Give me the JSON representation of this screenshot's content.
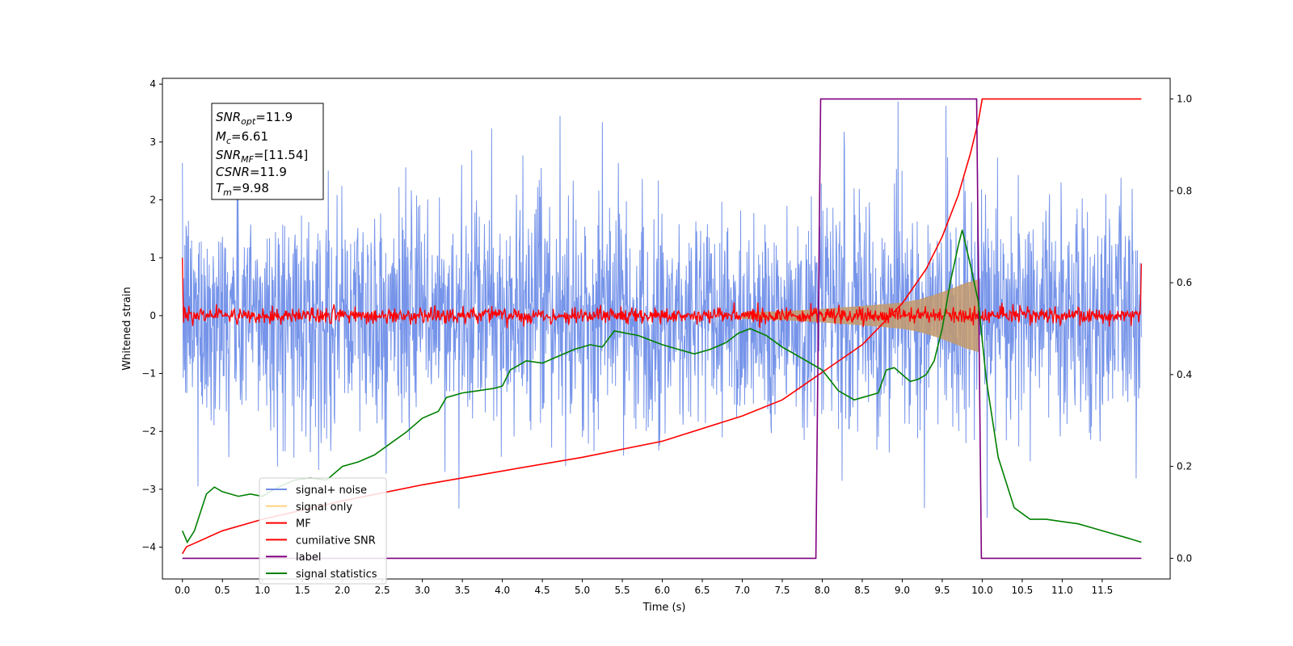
{
  "chart_data": {
    "type": "line",
    "xlabel": "Time (s)",
    "ylabel": "Whitened strain",
    "xlim": [
      -0.25,
      12.35
    ],
    "ylim": [
      -4.55,
      4.1
    ],
    "y2lim": [
      -0.045,
      1.045
    ],
    "x_ticks": [
      0.0,
      0.5,
      1.0,
      1.5,
      2.0,
      2.5,
      3.0,
      3.5,
      4.0,
      4.5,
      5.0,
      5.5,
      6.0,
      6.5,
      7.0,
      7.5,
      8.0,
      8.5,
      9.0,
      9.5,
      10.0,
      10.5,
      11.0,
      11.5
    ],
    "x_tick_labels": [
      "0.0",
      "0.5",
      "1.0",
      "1.5",
      "2.0",
      "2.5",
      "3.0",
      "3.5",
      "4.0",
      "4.5",
      "5.0",
      "5.5",
      "6.0",
      "6.5",
      "7.0",
      "7.5",
      "8.0",
      "8.5",
      "9.0",
      "9.5",
      "10.0",
      "10.5",
      "11.0",
      "11.5"
    ],
    "y_ticks": [
      -4,
      -3,
      -2,
      -1,
      0,
      1,
      2,
      3,
      4
    ],
    "y_tick_labels": [
      "−4",
      "−3",
      "−2",
      "−1",
      "0",
      "1",
      "2",
      "3",
      "4"
    ],
    "y2_ticks": [
      0.0,
      0.2,
      0.4,
      0.6,
      0.8,
      1.0
    ],
    "y2_tick_labels": [
      "0.0",
      "0.2",
      "0.4",
      "0.6",
      "0.8",
      "1.0"
    ],
    "grid": false,
    "legend_position": "lower-left",
    "legend": [
      {
        "label": "signal+ noise",
        "color": "#6f8ee8"
      },
      {
        "label": "signal only",
        "color": "#ffd27f"
      },
      {
        "label": "MF",
        "color": "#ff0000"
      },
      {
        "label": "cumilative SNR",
        "color": "#ff0000"
      },
      {
        "label": "label",
        "color": "#800080"
      },
      {
        "label": "signal statistics",
        "color": "#008000"
      }
    ],
    "annotation": {
      "snr_opt": "11.9",
      "mc": "6.61",
      "snr_mf": "[11.54]",
      "csnr": "11.9",
      "tm": "9.98"
    },
    "series": [
      {
        "name": "signal+ noise",
        "axis": "left",
        "color": "#6f8ee8",
        "x_range": [
          0.0,
          11.99
        ],
        "description_values": {
          "mean": 0.0,
          "typical_peak": 2.0,
          "max": 3.7,
          "min": -3.9
        }
      },
      {
        "name": "signal only",
        "axis": "left",
        "color": "#ffd27f",
        "envelope": {
          "x": [
            7.0,
            7.5,
            8.0,
            8.5,
            9.0,
            9.2,
            9.4,
            9.6,
            9.8,
            9.95
          ],
          "amp": [
            0.05,
            0.07,
            0.11,
            0.16,
            0.22,
            0.27,
            0.35,
            0.45,
            0.56,
            0.62
          ]
        }
      },
      {
        "name": "MF",
        "axis": "left",
        "color": "#ff0000",
        "x_range": [
          0.0,
          11.99
        ],
        "edge_values": {
          "start": 1.0,
          "end": 0.9
        },
        "noise_amplitude": 0.1
      },
      {
        "name": "cumilative SNR",
        "axis": "right",
        "color": "#ff0000",
        "x": [
          0.0,
          0.05,
          0.5,
          1.0,
          2.0,
          3.0,
          4.0,
          5.0,
          6.0,
          7.0,
          7.5,
          8.0,
          8.5,
          9.0,
          9.3,
          9.5,
          9.7,
          9.85,
          9.95,
          10.0,
          11.99
        ],
        "values": [
          0.01,
          0.025,
          0.06,
          0.085,
          0.125,
          0.16,
          0.19,
          0.22,
          0.255,
          0.31,
          0.345,
          0.405,
          0.465,
          0.555,
          0.63,
          0.7,
          0.79,
          0.88,
          0.95,
          1.0,
          1.0
        ]
      },
      {
        "name": "label",
        "axis": "right",
        "color": "#800080",
        "x": [
          0.0,
          7.92,
          7.98,
          9.93,
          9.99,
          11.99
        ],
        "values": [
          0.0,
          0.0,
          1.0,
          1.0,
          0.0,
          0.0
        ]
      },
      {
        "name": "signal statistics",
        "axis": "right",
        "color": "#008000",
        "x": [
          0.0,
          0.06,
          0.15,
          0.3,
          0.4,
          0.5,
          0.7,
          0.85,
          1.0,
          1.2,
          1.4,
          1.6,
          1.8,
          2.0,
          2.2,
          2.4,
          2.6,
          2.8,
          3.0,
          3.2,
          3.3,
          3.5,
          3.7,
          3.9,
          4.0,
          4.1,
          4.3,
          4.5,
          4.7,
          4.9,
          5.1,
          5.25,
          5.4,
          5.55,
          5.7,
          5.85,
          6.0,
          6.2,
          6.4,
          6.6,
          6.8,
          6.95,
          7.1,
          7.3,
          7.5,
          7.7,
          7.9,
          8.0,
          8.2,
          8.4,
          8.5,
          8.7,
          8.8,
          8.9,
          9.0,
          9.1,
          9.2,
          9.3,
          9.4,
          9.5,
          9.6,
          9.7,
          9.75,
          9.85,
          9.95,
          10.05,
          10.2,
          10.4,
          10.6,
          10.8,
          11.0,
          11.2,
          11.4,
          11.6,
          11.8,
          11.99
        ],
        "values": [
          0.06,
          0.035,
          0.06,
          0.14,
          0.155,
          0.145,
          0.135,
          0.14,
          0.135,
          0.155,
          0.17,
          0.175,
          0.17,
          0.2,
          0.21,
          0.225,
          0.25,
          0.275,
          0.305,
          0.32,
          0.35,
          0.36,
          0.365,
          0.37,
          0.375,
          0.41,
          0.43,
          0.425,
          0.44,
          0.455,
          0.465,
          0.46,
          0.495,
          0.49,
          0.485,
          0.475,
          0.465,
          0.455,
          0.445,
          0.455,
          0.47,
          0.49,
          0.5,
          0.485,
          0.46,
          0.44,
          0.42,
          0.41,
          0.365,
          0.345,
          0.35,
          0.36,
          0.41,
          0.415,
          0.4,
          0.385,
          0.39,
          0.4,
          0.43,
          0.5,
          0.6,
          0.68,
          0.715,
          0.64,
          0.56,
          0.39,
          0.22,
          0.11,
          0.085,
          0.085,
          0.08,
          0.075,
          0.065,
          0.055,
          0.045,
          0.035
        ]
      }
    ]
  }
}
